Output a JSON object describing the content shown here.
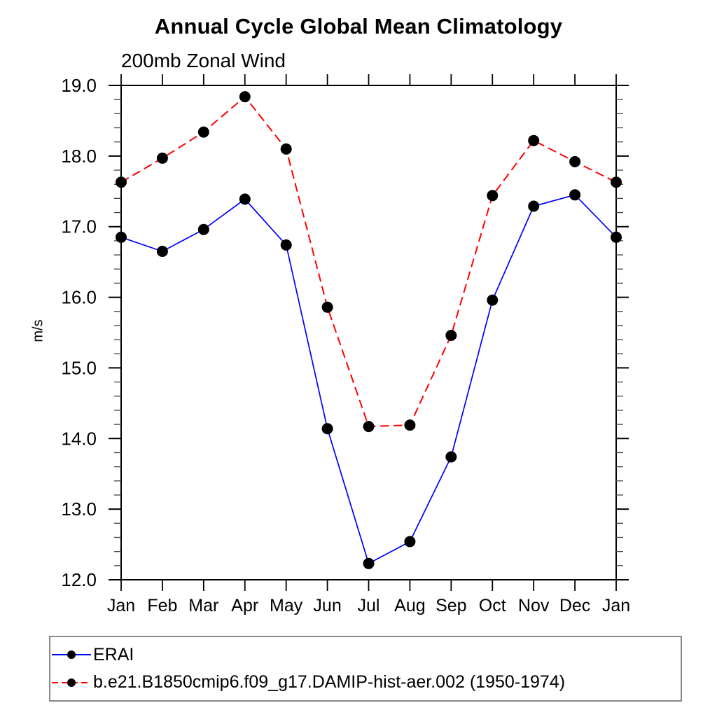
{
  "chart_data": {
    "type": "line",
    "title": "Annual Cycle Global Mean Climatology",
    "subtitle": "200mb Zonal Wind",
    "ylabel": "m/s",
    "xlabel": "",
    "categories": [
      "Jan",
      "Feb",
      "Mar",
      "Apr",
      "May",
      "Jun",
      "Jul",
      "Aug",
      "Sep",
      "Oct",
      "Nov",
      "Dec",
      "Jan"
    ],
    "ylim": [
      12.0,
      19.0
    ],
    "ytick_major_step": 1.0,
    "ytick_minor_step": 0.2,
    "ytick_labels": [
      "12.0",
      "13.0",
      "14.0",
      "15.0",
      "16.0",
      "17.0",
      "18.0",
      "19.0"
    ],
    "grid": false,
    "legend_position": "bottom",
    "axis_color": "#000000",
    "series": [
      {
        "name": "ERAI",
        "color": "#0000ff",
        "line_style": "solid",
        "marker": "filled-circle",
        "marker_color": "#000000",
        "values": [
          16.85,
          16.65,
          16.96,
          17.39,
          16.74,
          14.14,
          12.23,
          12.54,
          13.74,
          15.96,
          17.29,
          17.45,
          16.85
        ]
      },
      {
        "name": "b.e21.B1850cmip6.f09_g17.DAMIP-hist-aer.002 (1950-1974)",
        "color": "#ff0000",
        "line_style": "dashed",
        "marker": "filled-circle",
        "marker_color": "#000000",
        "values": [
          17.63,
          17.97,
          18.34,
          18.84,
          18.1,
          15.86,
          14.17,
          14.19,
          15.46,
          17.44,
          18.22,
          17.92,
          17.63
        ]
      }
    ]
  }
}
